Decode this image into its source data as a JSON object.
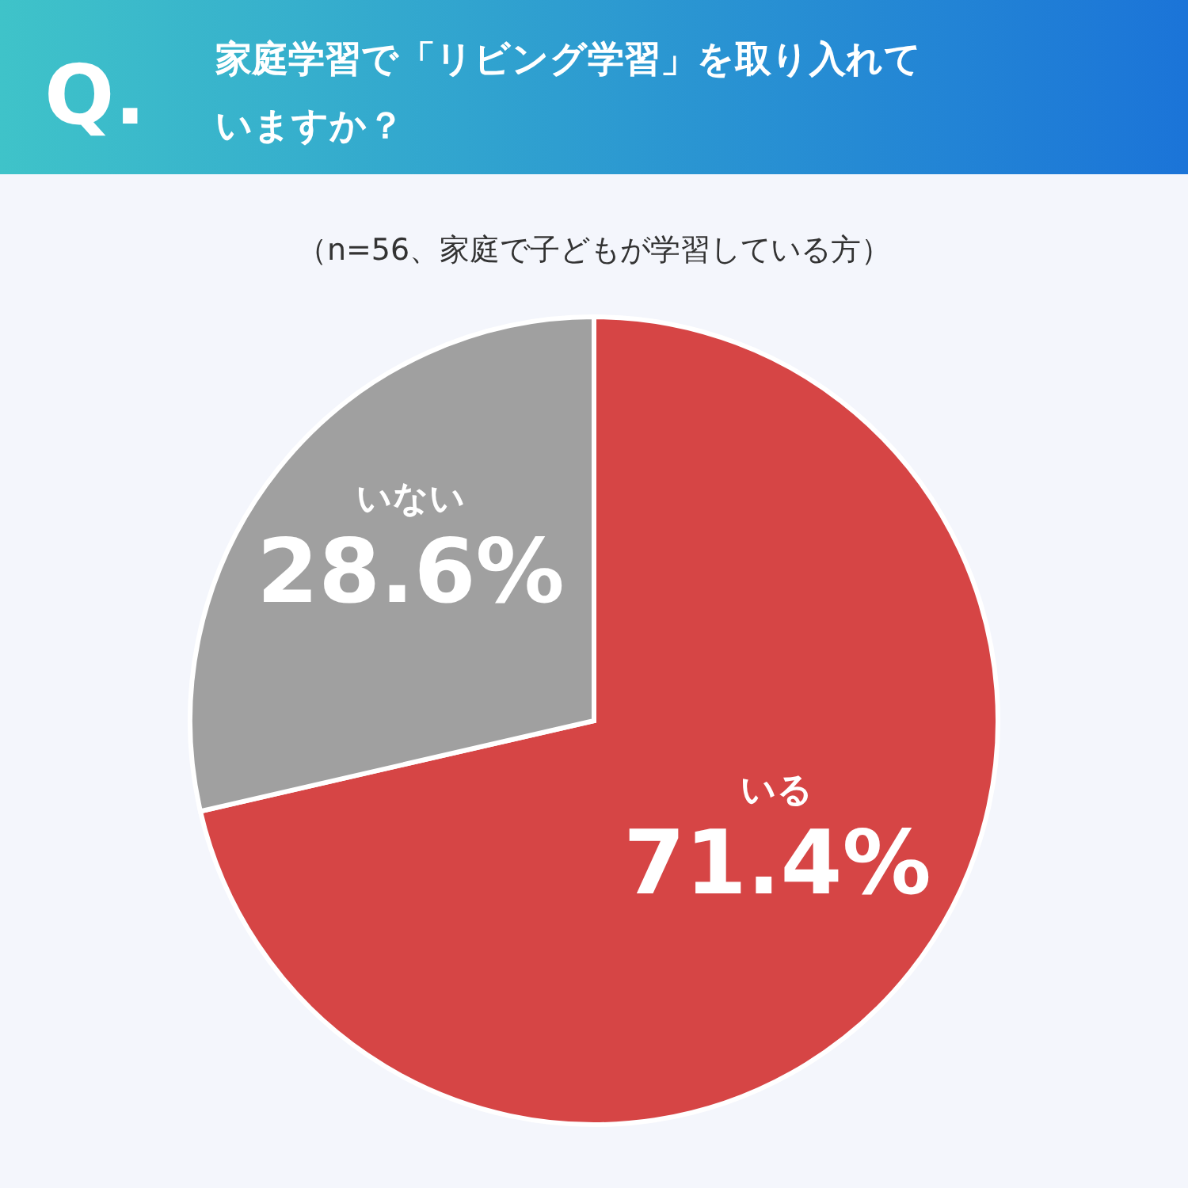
{
  "chart_data": {
    "type": "pie",
    "title": "家庭学習で「リビング学習」を取り入れていますか？",
    "subtitle": "（n=56、家庭で子どもが学習している方）",
    "annotations": [
      "Q."
    ],
    "categories": [
      "いる",
      "いない"
    ],
    "values": [
      71.4,
      28.6
    ],
    "value_labels": [
      "71.4%",
      "28.6%"
    ],
    "colors": [
      "#d64545",
      "#a0a0a0"
    ]
  }
}
